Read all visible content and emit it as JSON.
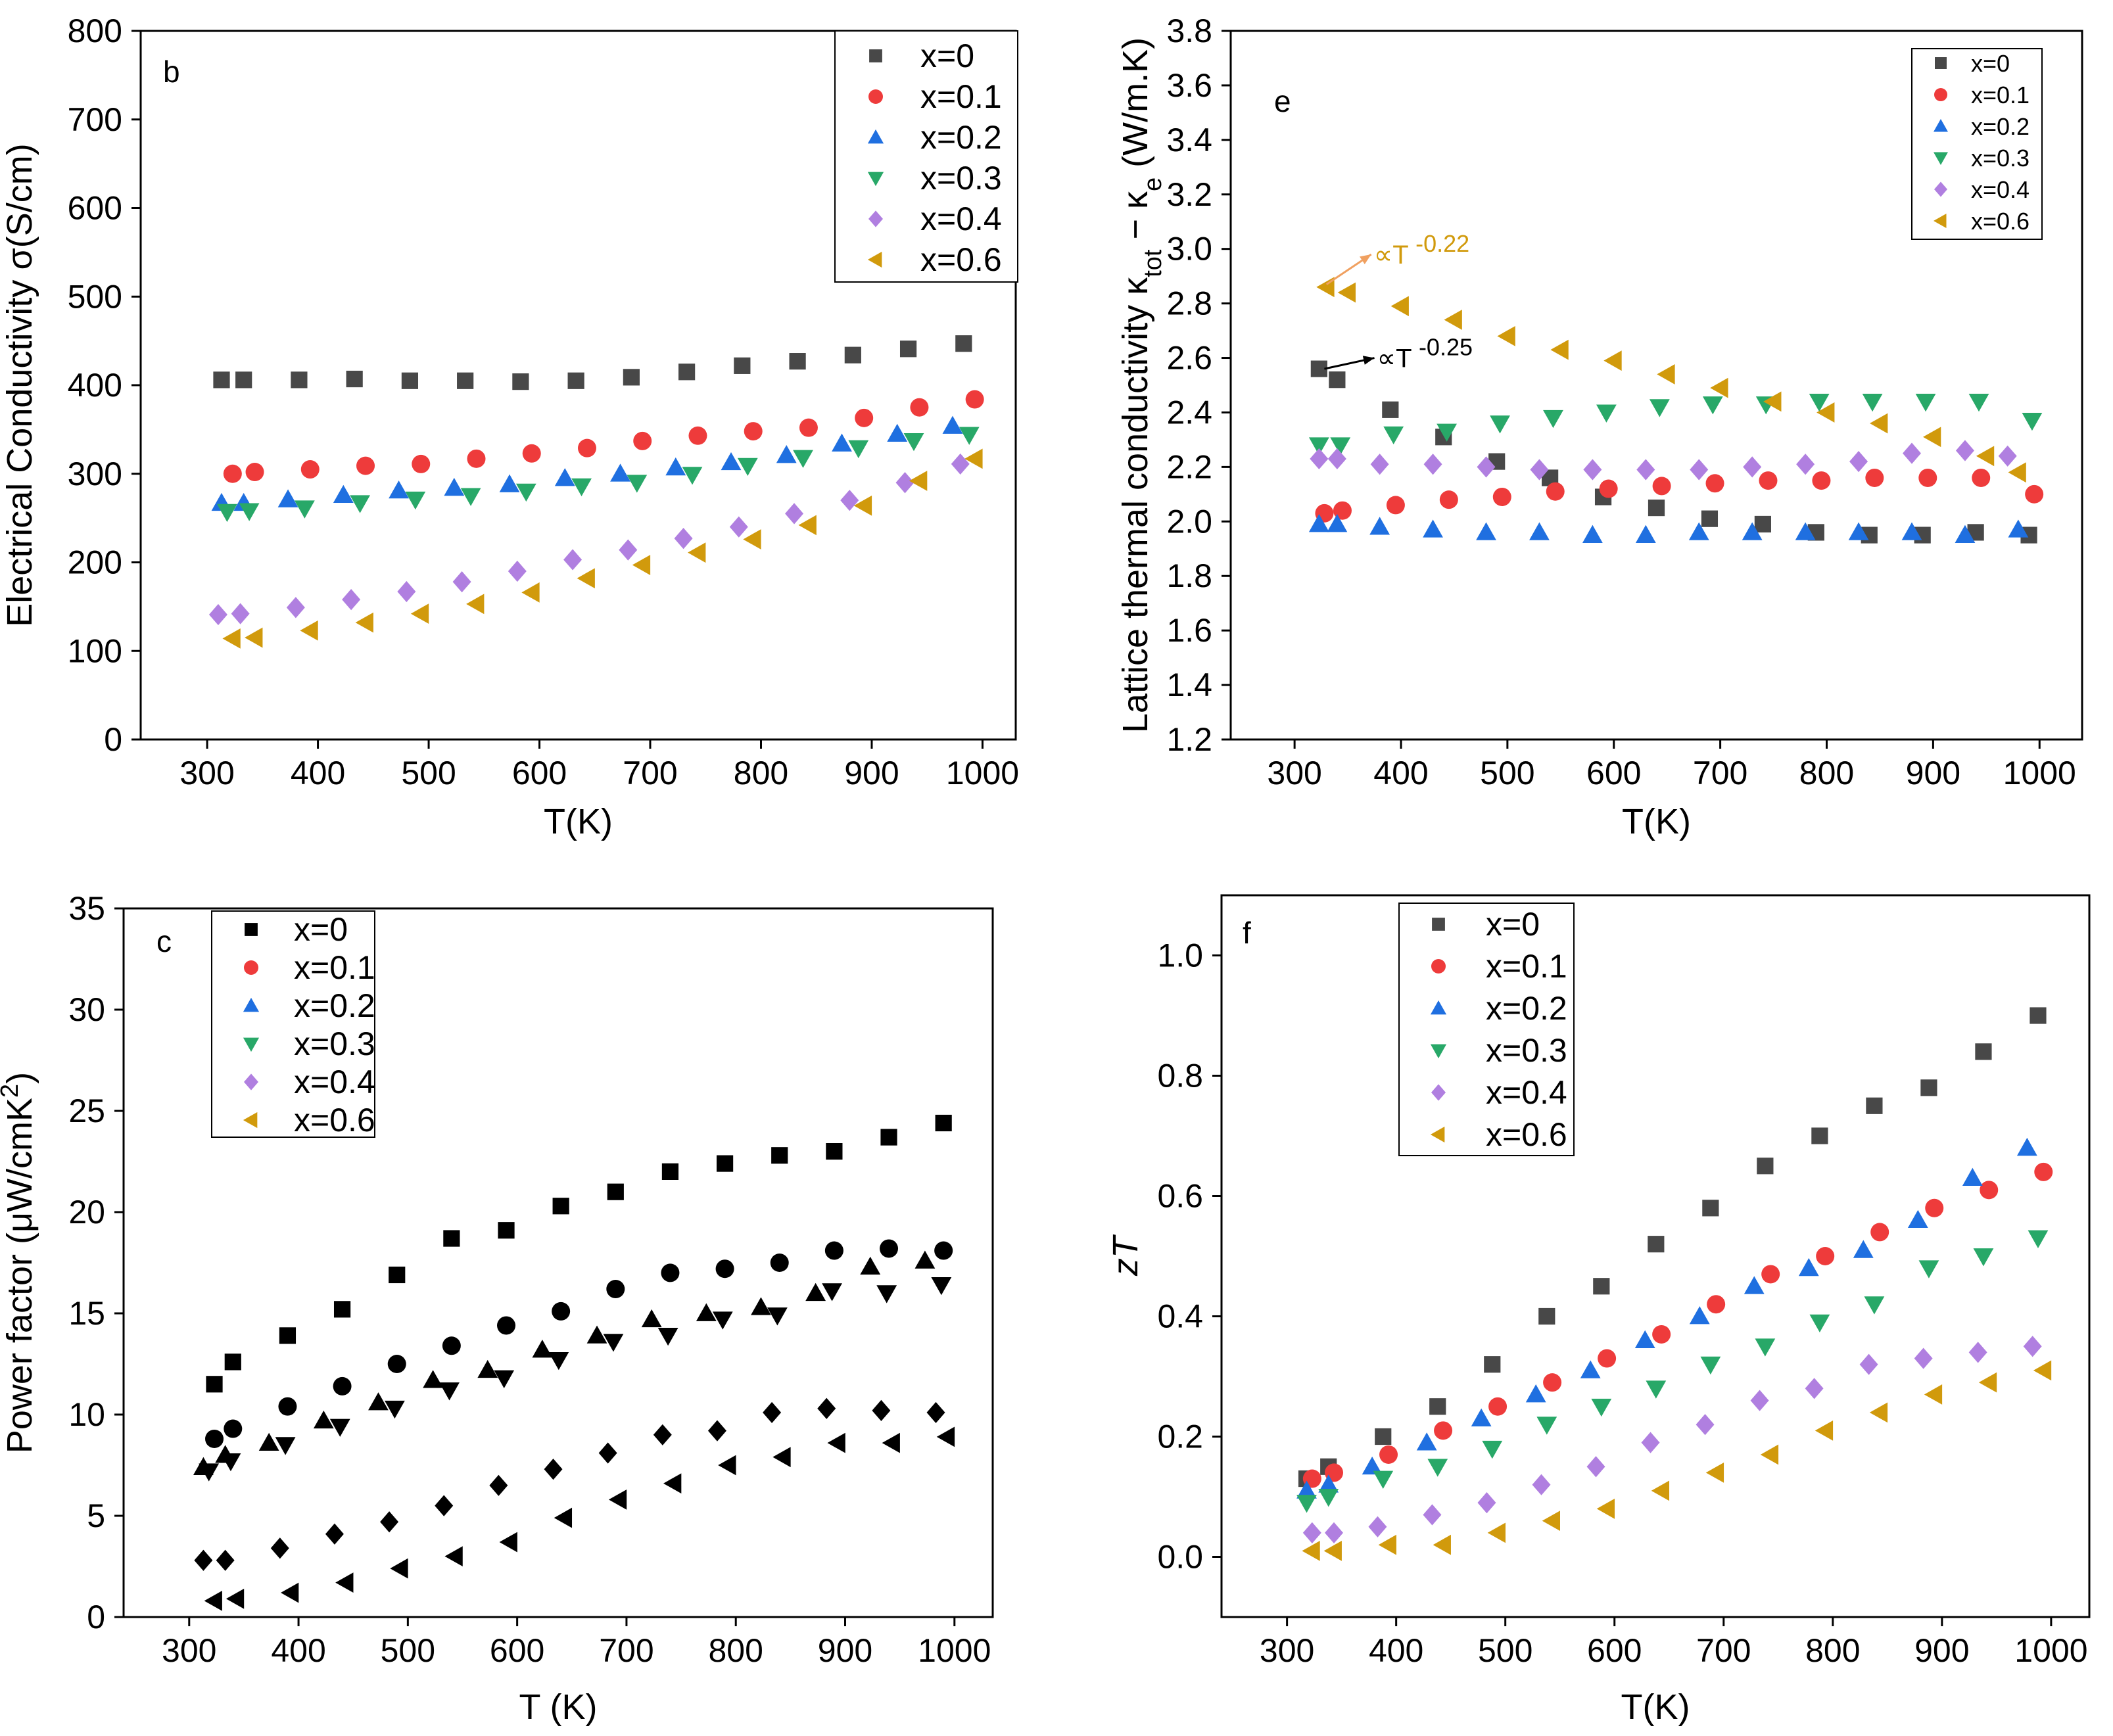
{
  "figure": {
    "legend_labels": [
      "x=0",
      "x=0.1",
      "x=0.2",
      "x=0.3",
      "x=0.4",
      "x=0.6"
    ],
    "colors": {
      "x=0": "#484848",
      "x=0.1": "#ee3b3b",
      "x=0.2": "#1f6fe0",
      "x=0.3": "#28a868",
      "x=0.4": "#b07fe0",
      "x=0.6": "#d19a0c"
    },
    "markers": {
      "x=0": "square",
      "x=0.1": "circle",
      "x=0.2": "triangle-up",
      "x=0.3": "triangle-down",
      "x=0.4": "diamond",
      "x=0.6": "triangle-left"
    }
  },
  "chart_data": [
    {
      "id": "b",
      "type": "scatter",
      "panel_label": "b",
      "xlabel": "T(K)",
      "ylabel": "Electrical Conductivity σ(S/cm)",
      "xlim": [
        240,
        1030
      ],
      "ylim": [
        0,
        800
      ],
      "xticks": [
        300,
        400,
        500,
        600,
        700,
        800,
        900,
        1000
      ],
      "yticks": [
        0,
        100,
        200,
        300,
        400,
        500,
        600,
        700,
        800
      ],
      "legend_position": "top-right",
      "series": [
        {
          "name": "x=0",
          "x": [
            313,
            333,
            383,
            433,
            483,
            533,
            583,
            633,
            683,
            733,
            783,
            833,
            883,
            933,
            983
          ],
          "y": [
            406,
            406,
            406,
            407,
            405,
            405,
            404,
            405,
            409,
            415,
            422,
            427,
            434,
            441,
            447
          ]
        },
        {
          "name": "x=0.1",
          "x": [
            323,
            343,
            393,
            443,
            493,
            543,
            593,
            643,
            693,
            743,
            793,
            843,
            893,
            943,
            993
          ],
          "y": [
            300,
            302,
            305,
            309,
            311,
            317,
            323,
            329,
            337,
            343,
            348,
            352,
            363,
            375,
            384
          ]
        },
        {
          "name": "x=0.2",
          "x": [
            313,
            333,
            373,
            423,
            473,
            523,
            573,
            623,
            673,
            723,
            773,
            823,
            873,
            923,
            973
          ],
          "y": [
            267,
            267,
            271,
            276,
            281,
            284,
            288,
            295,
            300,
            307,
            313,
            321,
            334,
            345,
            354
          ]
        },
        {
          "name": "x=0.3",
          "x": [
            318,
            338,
            388,
            438,
            488,
            538,
            588,
            638,
            688,
            738,
            788,
            838,
            888,
            938,
            988
          ],
          "y": [
            257,
            258,
            261,
            267,
            271,
            275,
            280,
            286,
            290,
            299,
            309,
            318,
            329,
            337,
            344
          ]
        },
        {
          "name": "x=0.4",
          "x": [
            310,
            330,
            380,
            430,
            480,
            530,
            580,
            630,
            680,
            730,
            780,
            830,
            880,
            930,
            980
          ],
          "y": [
            141,
            142,
            149,
            158,
            167,
            178,
            190,
            203,
            214,
            227,
            240,
            255,
            270,
            290,
            311
          ]
        },
        {
          "name": "x=0.6",
          "x": [
            323,
            343,
            393,
            443,
            493,
            543,
            593,
            643,
            693,
            743,
            793,
            843,
            893,
            943,
            993
          ],
          "y": [
            114,
            115,
            123,
            132,
            142,
            153,
            166,
            182,
            197,
            211,
            226,
            242,
            264,
            292,
            317
          ]
        }
      ]
    },
    {
      "id": "e",
      "type": "scatter",
      "panel_label": "e",
      "xlabel": "T(K)",
      "ylabel": "Lattice thermal conductivity κtot − κe (W/m.K)",
      "xlim": [
        240,
        1040
      ],
      "ylim": [
        1.2,
        3.8
      ],
      "xticks": [
        300,
        400,
        500,
        600,
        700,
        800,
        900,
        1000
      ],
      "yticks": [
        1.2,
        1.4,
        1.6,
        1.8,
        2.0,
        2.2,
        2.4,
        2.6,
        2.8,
        3.0,
        3.2,
        3.4,
        3.6,
        3.8
      ],
      "legend_position": "top-right",
      "annotations": [
        {
          "text_base": "∝T",
          "text_exp": "-0.22",
          "color": "#d19a0c",
          "arrow_color": "#f0a060",
          "from": [
            330,
            2.87
          ],
          "to": [
            372,
            2.98
          ],
          "text_at": [
            372,
            2.98
          ]
        },
        {
          "text_base": "∝T",
          "text_exp": "-0.25",
          "color": "#000000",
          "arrow_color": "#000000",
          "from": [
            328,
            2.56
          ],
          "to": [
            375,
            2.6
          ],
          "text_at": [
            375,
            2.6
          ]
        }
      ],
      "series": [
        {
          "name": "x=0",
          "x": [
            323,
            340,
            390,
            440,
            490,
            540,
            590,
            640,
            690,
            740,
            790,
            840,
            890,
            940,
            990
          ],
          "y": [
            2.56,
            2.52,
            2.41,
            2.31,
            2.22,
            2.16,
            2.09,
            2.05,
            2.01,
            1.99,
            1.96,
            1.95,
            1.95,
            1.96,
            1.95
          ]
        },
        {
          "name": "x=0.1",
          "x": [
            328,
            345,
            395,
            445,
            495,
            545,
            595,
            645,
            695,
            745,
            795,
            845,
            895,
            945,
            995
          ],
          "y": [
            2.03,
            2.04,
            2.06,
            2.08,
            2.09,
            2.11,
            2.12,
            2.13,
            2.14,
            2.15,
            2.15,
            2.16,
            2.16,
            2.16,
            2.1
          ]
        },
        {
          "name": "x=0.2",
          "x": [
            323,
            340,
            380,
            430,
            480,
            530,
            580,
            630,
            680,
            730,
            780,
            830,
            880,
            930,
            980
          ],
          "y": [
            1.99,
            1.99,
            1.98,
            1.97,
            1.96,
            1.96,
            1.95,
            1.95,
            1.96,
            1.96,
            1.96,
            1.96,
            1.96,
            1.95,
            1.97
          ]
        },
        {
          "name": "x=0.3",
          "x": [
            323,
            343,
            393,
            443,
            493,
            543,
            593,
            643,
            693,
            743,
            793,
            843,
            893,
            943,
            993
          ],
          "y": [
            2.28,
            2.28,
            2.32,
            2.33,
            2.36,
            2.38,
            2.4,
            2.42,
            2.43,
            2.43,
            2.44,
            2.44,
            2.44,
            2.44,
            2.37
          ]
        },
        {
          "name": "x=0.4",
          "x": [
            323,
            340,
            380,
            430,
            480,
            530,
            580,
            630,
            680,
            730,
            780,
            830,
            880,
            930,
            970
          ],
          "y": [
            2.23,
            2.23,
            2.21,
            2.21,
            2.2,
            2.19,
            2.19,
            2.19,
            2.19,
            2.2,
            2.21,
            2.22,
            2.25,
            2.26,
            2.24
          ]
        },
        {
          "name": "x=0.6",
          "x": [
            330,
            350,
            400,
            450,
            500,
            550,
            600,
            650,
            700,
            750,
            800,
            850,
            900,
            950,
            980
          ],
          "y": [
            2.86,
            2.84,
            2.79,
            2.74,
            2.68,
            2.63,
            2.59,
            2.54,
            2.49,
            2.44,
            2.4,
            2.36,
            2.31,
            2.24,
            2.18
          ]
        }
      ]
    },
    {
      "id": "c",
      "type": "scatter",
      "panel_label": "c",
      "xlabel": "T (K)",
      "ylabel": "Power factor (μW/cmK²)",
      "xlim": [
        240,
        1035
      ],
      "ylim": [
        0,
        35
      ],
      "xticks": [
        300,
        400,
        500,
        600,
        700,
        800,
        900,
        1000
      ],
      "yticks": [
        0,
        5,
        10,
        15,
        20,
        25,
        30,
        35
      ],
      "legend_position": "top-left",
      "series": [
        {
          "name": "x=0",
          "x": [
            323,
            340,
            390,
            440,
            490,
            540,
            590,
            640,
            690,
            740,
            790,
            840,
            890,
            940,
            990
          ],
          "y": [
            11.5,
            12.6,
            13.9,
            15.2,
            16.9,
            18.7,
            19.1,
            20.3,
            21.0,
            22.0,
            22.4,
            22.8,
            23.0,
            23.7,
            24.4
          ]
        },
        {
          "name": "x=0.1",
          "x": [
            323,
            340,
            390,
            440,
            490,
            540,
            590,
            640,
            690,
            740,
            790,
            840,
            890,
            940,
            990
          ],
          "y": [
            8.8,
            9.3,
            10.4,
            11.4,
            12.5,
            13.4,
            14.4,
            15.1,
            16.2,
            17.0,
            17.2,
            17.5,
            18.1,
            18.2,
            18.1
          ]
        },
        {
          "name": "x=0.2",
          "x": [
            313,
            333,
            373,
            423,
            473,
            523,
            573,
            623,
            673,
            723,
            773,
            823,
            873,
            923,
            973
          ],
          "y": [
            7.4,
            8.0,
            8.6,
            9.7,
            10.6,
            11.7,
            12.2,
            13.2,
            13.9,
            14.7,
            15.0,
            15.3,
            16.0,
            17.3,
            17.6
          ]
        },
        {
          "name": "x=0.3",
          "x": [
            318,
            338,
            388,
            438,
            488,
            538,
            588,
            638,
            688,
            738,
            788,
            838,
            888,
            938,
            988
          ],
          "y": [
            7.2,
            7.7,
            8.5,
            9.4,
            10.3,
            11.2,
            11.8,
            12.7,
            13.6,
            13.9,
            14.7,
            14.9,
            16.1,
            16.0,
            16.4
          ]
        },
        {
          "name": "x=0.4",
          "x": [
            313,
            333,
            383,
            433,
            483,
            533,
            583,
            633,
            683,
            733,
            783,
            833,
            883,
            933,
            983
          ],
          "y": [
            2.8,
            2.8,
            3.4,
            4.1,
            4.7,
            5.5,
            6.5,
            7.3,
            8.1,
            9.0,
            9.2,
            10.1,
            10.3,
            10.2,
            10.1
          ]
        },
        {
          "name": "x=0.6",
          "x": [
            323,
            343,
            393,
            443,
            493,
            543,
            593,
            643,
            693,
            743,
            793,
            843,
            893,
            943,
            993
          ],
          "y": [
            0.8,
            0.9,
            1.2,
            1.7,
            2.4,
            3.0,
            3.7,
            4.9,
            5.8,
            6.6,
            7.5,
            7.9,
            8.6,
            8.6,
            8.9
          ]
        }
      ]
    },
    {
      "id": "f",
      "type": "scatter",
      "panel_label": "f",
      "xlabel": "T(K)",
      "ylabel": "zT",
      "xlim": [
        240,
        1035
      ],
      "ylim": [
        -0.1,
        1.1
      ],
      "xticks": [
        300,
        400,
        500,
        600,
        700,
        800,
        900,
        1000
      ],
      "yticks": [
        0.0,
        0.2,
        0.4,
        0.6,
        0.8,
        1.0
      ],
      "legend_position": "top-left",
      "series": [
        {
          "name": "x=0",
          "x": [
            318,
            338,
            388,
            438,
            488,
            538,
            588,
            638,
            688,
            738,
            788,
            838,
            888,
            938,
            988
          ],
          "y": [
            0.13,
            0.15,
            0.2,
            0.25,
            0.32,
            0.4,
            0.45,
            0.52,
            0.58,
            0.65,
            0.7,
            0.75,
            0.78,
            0.84,
            0.9
          ]
        },
        {
          "name": "x=0.1",
          "x": [
            323,
            343,
            393,
            443,
            493,
            543,
            593,
            643,
            693,
            743,
            793,
            843,
            893,
            943,
            993
          ],
          "y": [
            0.13,
            0.14,
            0.17,
            0.21,
            0.25,
            0.29,
            0.33,
            0.37,
            0.42,
            0.47,
            0.5,
            0.54,
            0.58,
            0.61,
            0.64
          ]
        },
        {
          "name": "x=0.2",
          "x": [
            318,
            338,
            378,
            428,
            478,
            528,
            578,
            628,
            678,
            728,
            778,
            828,
            878,
            928,
            978
          ],
          "y": [
            0.11,
            0.12,
            0.15,
            0.19,
            0.23,
            0.27,
            0.31,
            0.36,
            0.4,
            0.45,
            0.48,
            0.51,
            0.56,
            0.63,
            0.68
          ]
        },
        {
          "name": "x=0.3",
          "x": [
            318,
            338,
            388,
            438,
            488,
            538,
            588,
            638,
            688,
            738,
            788,
            838,
            888,
            938,
            988
          ],
          "y": [
            0.09,
            0.1,
            0.13,
            0.15,
            0.18,
            0.22,
            0.25,
            0.28,
            0.32,
            0.35,
            0.39,
            0.42,
            0.48,
            0.5,
            0.53
          ]
        },
        {
          "name": "x=0.4",
          "x": [
            323,
            343,
            383,
            433,
            483,
            533,
            583,
            633,
            683,
            733,
            783,
            833,
            883,
            933,
            983
          ],
          "y": [
            0.04,
            0.04,
            0.05,
            0.07,
            0.09,
            0.12,
            0.15,
            0.19,
            0.22,
            0.26,
            0.28,
            0.32,
            0.33,
            0.34,
            0.35
          ]
        },
        {
          "name": "x=0.6",
          "x": [
            323,
            343,
            393,
            443,
            493,
            543,
            593,
            643,
            693,
            743,
            793,
            843,
            893,
            943,
            993
          ],
          "y": [
            0.01,
            0.01,
            0.02,
            0.02,
            0.04,
            0.06,
            0.08,
            0.11,
            0.14,
            0.17,
            0.21,
            0.24,
            0.27,
            0.29,
            0.31
          ]
        }
      ]
    }
  ]
}
